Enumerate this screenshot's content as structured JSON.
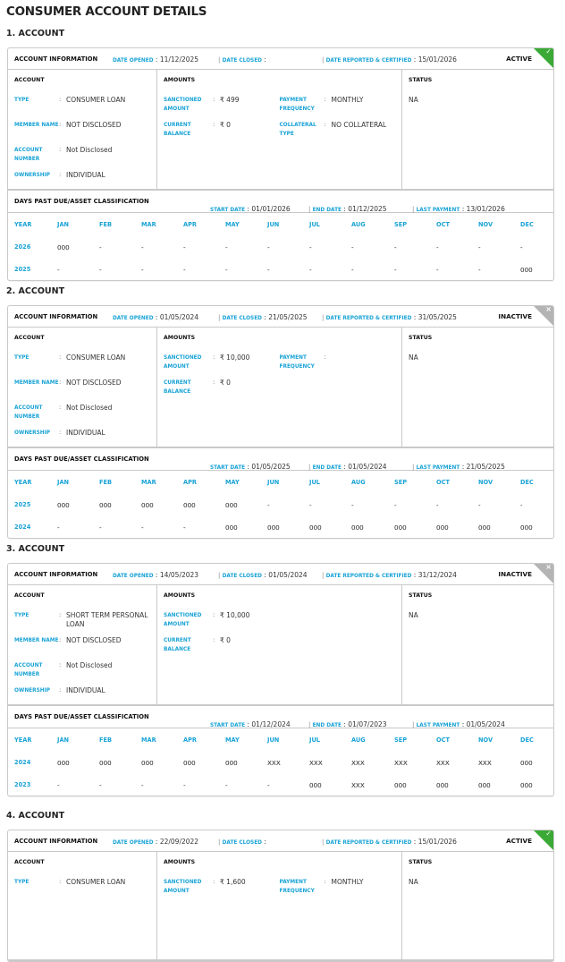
{
  "page_title": "CONSUMER ACCOUNT DETAILS",
  "labels": {
    "account_information": "ACCOUNT INFORMATION",
    "date_opened": "DATE OPENED",
    "date_closed": "DATE CLOSED",
    "date_reported": "DATE REPORTED & CERTIFIED",
    "account": "ACCOUNT",
    "amounts": "AMOUNTS",
    "status": "STATUS",
    "type": "TYPE",
    "member_name": "MEMBER NAME",
    "account_number": "ACCOUNT NUMBER",
    "ownership": "OWNERSHIP",
    "sanctioned_amount": "SANCTIONED AMOUNT",
    "current_balance": "CURRENT BALANCE",
    "payment_frequency": "PAYMENT FREQUENCY",
    "collateral_type": "COLLATERAL TYPE",
    "dpd_title": "DAYS PAST DUE/ASSET CLASSIFICATION",
    "start_date": "START DATE",
    "end_date": "END DATE",
    "last_payment": "LAST PAYMENT",
    "year": "YEAR",
    "months": [
      "JAN",
      "FEB",
      "MAR",
      "APR",
      "MAY",
      "JUN",
      "JUL",
      "AUG",
      "SEP",
      "OCT",
      "NOV",
      "DEC"
    ]
  },
  "colors": {
    "accent": "#1aa3d6",
    "active": "#3aa935",
    "inactive": "#b4b4b4"
  },
  "accounts": [
    {
      "title": "1. ACCOUNT",
      "badge": "ACTIVE",
      "badge_icon": "check-icon",
      "date_opened": "11/12/2025",
      "date_closed": "",
      "date_reported": "15/01/2026",
      "type": "CONSUMER LOAN",
      "member_name": "NOT DISCLOSED",
      "account_number": "Not Disclosed",
      "ownership": "INDIVIDUAL",
      "sanctioned_amount": "₹ 499",
      "current_balance": "₹ 0",
      "payment_frequency": "MONTHLY",
      "collateral_type": "NO COLLATERAL",
      "status": "NA",
      "start_date": "01/01/2026",
      "end_date": "01/12/2025",
      "last_payment": "13/01/2026",
      "dpd": [
        {
          "year": "2026",
          "values": [
            "000",
            "-",
            "-",
            "-",
            "-",
            "-",
            "-",
            "-",
            "-",
            "-",
            "-",
            "-"
          ]
        },
        {
          "year": "2025",
          "values": [
            "-",
            "-",
            "-",
            "-",
            "-",
            "-",
            "-",
            "-",
            "-",
            "-",
            "-",
            "000"
          ]
        }
      ]
    },
    {
      "title": "2. ACCOUNT",
      "badge": "INACTIVE",
      "badge_icon": "close-icon",
      "date_opened": "01/05/2024",
      "date_closed": "21/05/2025",
      "date_reported": "31/05/2025",
      "type": "CONSUMER LOAN",
      "member_name": "NOT DISCLOSED",
      "account_number": "Not Disclosed",
      "ownership": "INDIVIDUAL",
      "sanctioned_amount": "₹ 10,000",
      "current_balance": "₹ 0",
      "payment_frequency": "",
      "status": "NA",
      "start_date": "01/05/2025",
      "end_date": "01/05/2024",
      "last_payment": "21/05/2025",
      "dpd": [
        {
          "year": "2025",
          "values": [
            "000",
            "000",
            "000",
            "000",
            "000",
            "-",
            "-",
            "-",
            "-",
            "-",
            "-",
            "-"
          ]
        },
        {
          "year": "2024",
          "values": [
            "-",
            "-",
            "-",
            "-",
            "000",
            "000",
            "000",
            "000",
            "000",
            "000",
            "000",
            "000"
          ]
        }
      ]
    },
    {
      "title": "3. ACCOUNT",
      "badge": "INACTIVE",
      "badge_icon": "close-icon",
      "date_opened": "14/05/2023",
      "date_closed": "01/05/2024",
      "date_reported": "31/12/2024",
      "type": "SHORT TERM PERSONAL LOAN",
      "member_name": "NOT DISCLOSED",
      "account_number": "Not Disclosed",
      "ownership": "INDIVIDUAL",
      "sanctioned_amount": "₹ 10,000",
      "current_balance": "₹ 0",
      "status": "NA",
      "start_date": "01/12/2024",
      "end_date": "01/07/2023",
      "last_payment": "01/05/2024",
      "dpd": [
        {
          "year": "2024",
          "values": [
            "000",
            "000",
            "000",
            "000",
            "000",
            "XXX",
            "XXX",
            "XXX",
            "XXX",
            "XXX",
            "XXX",
            "000"
          ]
        },
        {
          "year": "2023",
          "values": [
            "-",
            "-",
            "-",
            "-",
            "-",
            "-",
            "000",
            "XXX",
            "000",
            "000",
            "000",
            "000"
          ]
        }
      ]
    },
    {
      "title": "4. ACCOUNT",
      "badge": "ACTIVE",
      "badge_icon": "check-icon",
      "date_opened": "22/09/2022",
      "date_closed": "",
      "date_reported": "15/01/2026",
      "type": "CONSUMER LOAN",
      "sanctioned_amount": "₹ 1,600",
      "payment_frequency": "MONTHLY",
      "status": "NA"
    }
  ]
}
